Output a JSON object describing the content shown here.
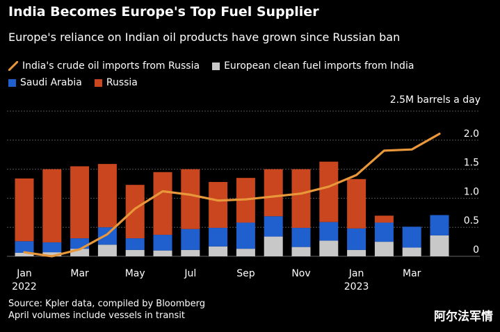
{
  "chart_data": {
    "type": "bar",
    "title": "India Becomes Europe's Top Fuel Supplier",
    "subtitle": "Europe's reliance on Indian oil products have grown since Russian ban",
    "unit_label": "2.5M barrels a day",
    "categories": [
      "Jan 2022",
      "Feb 2022",
      "Mar 2022",
      "Apr 2022",
      "May 2022",
      "Jun 2022",
      "Jul 2022",
      "Aug 2022",
      "Sep 2022",
      "Oct 2022",
      "Nov 2022",
      "Dec 2022",
      "Jan 2023",
      "Feb 2023",
      "Mar 2023",
      "Apr 2023"
    ],
    "x_tick_labels": [
      {
        "index": 0,
        "label": "Jan",
        "year": "2022"
      },
      {
        "index": 2,
        "label": "Mar",
        "year": ""
      },
      {
        "index": 4,
        "label": "May",
        "year": ""
      },
      {
        "index": 6,
        "label": "Jul",
        "year": ""
      },
      {
        "index": 8,
        "label": "Sep",
        "year": ""
      },
      {
        "index": 10,
        "label": "Nov",
        "year": ""
      },
      {
        "index": 12,
        "label": "Jan",
        "year": "2023"
      },
      {
        "index": 14,
        "label": "Mar",
        "year": ""
      }
    ],
    "y_ticks": [
      {
        "value": 0,
        "label": "0"
      },
      {
        "value": 0.5,
        "label": "0.5"
      },
      {
        "value": 1.0,
        "label": "1.0"
      },
      {
        "value": 1.5,
        "label": "1.5"
      },
      {
        "value": 2.0,
        "label": "2.0"
      },
      {
        "value": 2.5,
        "label": ""
      }
    ],
    "ylim": [
      0,
      2.5
    ],
    "grid": true,
    "stacked_series": [
      {
        "name": "European clean fuel imports from India",
        "color": "#c8c8c8",
        "values": [
          0.06,
          0.07,
          0.13,
          0.2,
          0.11,
          0.1,
          0.11,
          0.17,
          0.13,
          0.34,
          0.16,
          0.27,
          0.11,
          0.25,
          0.15,
          0.36
        ]
      },
      {
        "name": "Saudi Arabia",
        "color": "#1f5fce",
        "values": [
          0.2,
          0.17,
          0.18,
          0.3,
          0.2,
          0.27,
          0.36,
          0.32,
          0.45,
          0.35,
          0.33,
          0.32,
          0.37,
          0.33,
          0.36,
          0.35
        ]
      },
      {
        "name": "Russia",
        "color": "#c9461f",
        "values": [
          1.08,
          1.26,
          1.24,
          1.09,
          0.92,
          1.08,
          1.03,
          0.79,
          0.77,
          0.81,
          1.01,
          1.04,
          0.85,
          0.12,
          0,
          0
        ]
      }
    ],
    "line_series": {
      "name": "India's crude oil imports from Russia",
      "color": "#e8973a",
      "values": [
        0.07,
        0.0,
        0.12,
        0.38,
        0.82,
        1.12,
        1.06,
        0.96,
        0.98,
        1.03,
        1.08,
        1.2,
        1.4,
        1.82,
        1.84,
        2.11
      ]
    }
  },
  "legend": [
    {
      "label": "India's crude oil imports from Russia",
      "color": "#e8973a",
      "kind": "line"
    },
    {
      "label": "European clean fuel imports from India",
      "color": "#c8c8c8",
      "kind": "box"
    },
    {
      "label": "Saudi Arabia",
      "color": "#1f5fce",
      "kind": "box"
    },
    {
      "label": "Russia",
      "color": "#c9461f",
      "kind": "box"
    }
  ],
  "footer": {
    "source": "Source: Kpler data, compiled by Bloomberg",
    "note": "April volumes include vessels in transit"
  },
  "watermark": "阿尔法军情"
}
